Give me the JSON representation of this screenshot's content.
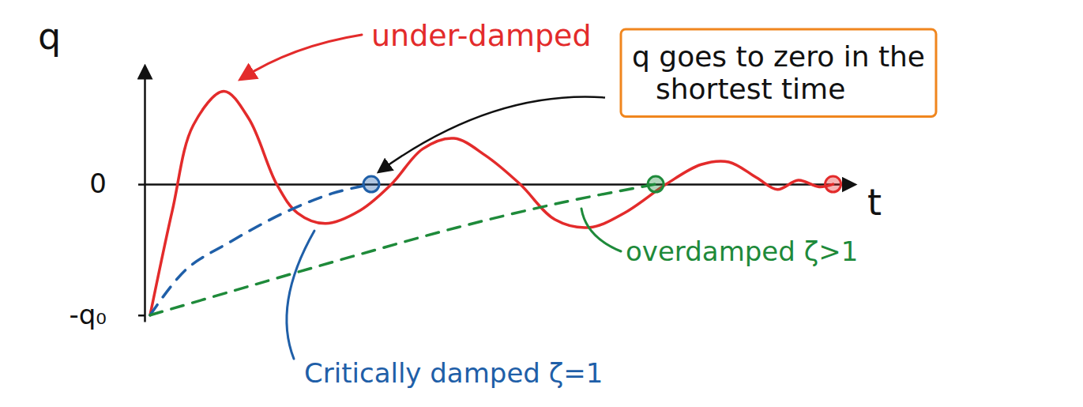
{
  "chart_data": {
    "type": "line",
    "ylabel": "q",
    "xlabel": "t",
    "xlim": [
      0,
      10.2
    ],
    "ylim": [
      -1.05,
      0.9
    ],
    "yticks": [
      0,
      {
        "value": -1,
        "label": "-q₀"
      }
    ],
    "tick_labels": "y",
    "grid": false,
    "series": [
      {
        "name": "under-damped",
        "color": "#e32b2b",
        "line_style": "solid",
        "marker": "end-circle",
        "x": [
          0.08,
          0.4,
          0.7,
          1.14,
          1.5,
          1.9,
          2.2,
          2.6,
          3.1,
          3.55,
          4.0,
          4.45,
          4.9,
          5.4,
          5.9,
          6.4,
          6.9,
          7.5,
          8.0,
          8.4,
          8.8,
          9.1,
          9.4,
          9.7,
          9.9
        ],
        "values": [
          -1.0,
          -0.2,
          0.45,
          0.71,
          0.5,
          0.0,
          -0.22,
          -0.3,
          -0.2,
          0.0,
          0.27,
          0.35,
          0.22,
          0.0,
          -0.27,
          -0.33,
          -0.22,
          0.0,
          0.15,
          0.17,
          0.05,
          -0.04,
          0.03,
          -0.02,
          0.0
        ]
      },
      {
        "name": "Critically damped ζ=1",
        "color": "#1f5fa8",
        "line_style": "dashed",
        "marker": "end-circle",
        "x": [
          0.08,
          0.6,
          1.2,
          2.0,
          2.7,
          3.26
        ],
        "values": [
          -1.0,
          -0.65,
          -0.45,
          -0.22,
          -0.07,
          0.0
        ]
      },
      {
        "name": "overdamped ζ>1",
        "color": "#1e8a3a",
        "line_style": "dashed",
        "marker": "end-circle",
        "x": [
          0.08,
          1.5,
          3.0,
          4.5,
          6.0,
          7.35
        ],
        "values": [
          -1.0,
          -0.78,
          -0.55,
          -0.33,
          -0.14,
          0.0
        ]
      }
    ],
    "annotations": [
      {
        "text": "q goes to zero in the shortest time",
        "color": "#f0861e"
      }
    ]
  }
}
